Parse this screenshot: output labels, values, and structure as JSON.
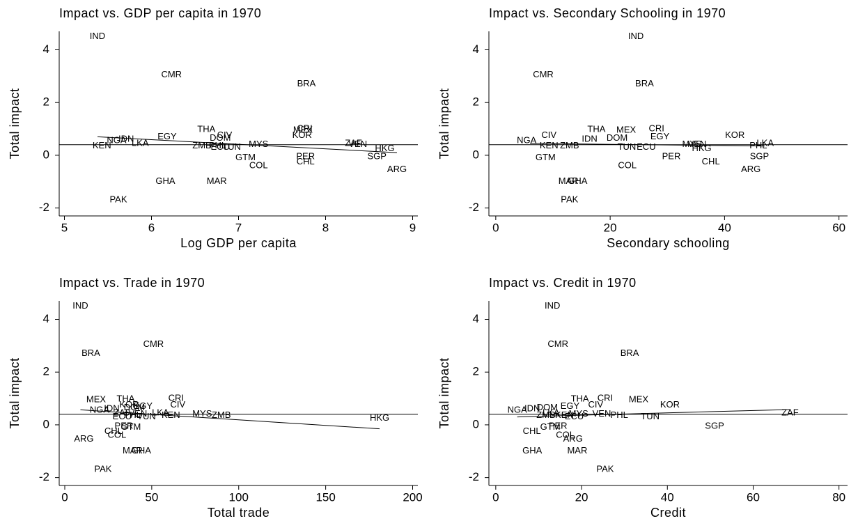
{
  "chart_data": [
    {
      "type": "scatter",
      "title": "Impact vs. GDP per capita in 1970",
      "x_label": "Log GDP per capita",
      "y_label": "Total impact",
      "labels": [
        "IND",
        "CMR",
        "BRA",
        "THA",
        "MEX",
        "CRI",
        "EGY",
        "KOR",
        "CIV",
        "NGA",
        "IDN",
        "DOM",
        "KEN",
        "ZMB",
        "LKA",
        "TUN",
        "ECU",
        "PHL",
        "MYS",
        "VEN",
        "ZAF",
        "HKG",
        "SGP",
        "PER",
        "GTM",
        "CHL",
        "COL",
        "ARG",
        "MAR",
        "GHA",
        "PAK"
      ],
      "x": [
        5.38,
        6.23,
        7.78,
        6.63,
        7.74,
        7.76,
        6.18,
        7.73,
        6.84,
        5.6,
        5.71,
        6.79,
        5.43,
        6.58,
        5.87,
        6.92,
        6.79,
        6.76,
        7.23,
        8.37,
        8.32,
        8.68,
        8.59,
        7.77,
        7.08,
        7.77,
        7.23,
        8.82,
        6.75,
        6.16,
        5.62
      ],
      "y": [
        4.5,
        3.05,
        2.7,
        0.98,
        0.95,
        1.0,
        0.7,
        0.75,
        0.75,
        0.55,
        0.6,
        0.65,
        0.35,
        0.35,
        0.45,
        0.3,
        0.3,
        0.35,
        0.4,
        0.4,
        0.45,
        0.25,
        -0.05,
        -0.05,
        -0.1,
        -0.25,
        -0.4,
        -0.55,
        -1.0,
        -1.0,
        -1.7
      ],
      "fit_line": {
        "x": [
          5.38,
          8.82
        ],
        "y": [
          0.7,
          0.1
        ]
      },
      "reference_line": 0.4,
      "xlim": [
        4.94,
        9.06
      ],
      "ylim": [
        -2.3,
        4.7
      ],
      "xticks": [
        5,
        6,
        7,
        8,
        9
      ],
      "yticks": [
        -2,
        0,
        2,
        4
      ]
    },
    {
      "type": "scatter",
      "title": "Impact vs. Secondary Schooling in 1970",
      "x_label": "Secondary schooling",
      "y_label": "Total impact",
      "labels": [
        "IND",
        "CMR",
        "BRA",
        "THA",
        "MEX",
        "CRI",
        "EGY",
        "KOR",
        "CIV",
        "NGA",
        "IDN",
        "DOM",
        "KEN",
        "ZMB",
        "LKA",
        "TUN",
        "ECU",
        "PHL",
        "MYS",
        "VEN",
        "HKG",
        "SGP",
        "PER",
        "GTM",
        "CHL",
        "COL",
        "ARG",
        "MAR",
        "GHA",
        "PAK"
      ],
      "x": [
        24.5,
        8.3,
        26,
        17.6,
        22.8,
        28.1,
        28.7,
        41.8,
        9.3,
        5.4,
        16.4,
        21.2,
        9.3,
        12.9,
        47.1,
        22.9,
        26.3,
        45.9,
        34.3,
        35.2,
        36,
        46.1,
        30.7,
        8.7,
        37.6,
        23,
        44.6,
        12.7,
        14.3,
        12.9
      ],
      "y": [
        4.5,
        3.05,
        2.7,
        0.98,
        0.95,
        1.0,
        0.7,
        0.75,
        0.75,
        0.55,
        0.6,
        0.65,
        0.35,
        0.35,
        0.45,
        0.3,
        0.3,
        0.35,
        0.4,
        0.4,
        0.25,
        -0.05,
        -0.05,
        -0.1,
        -0.25,
        -0.4,
        -0.55,
        -1.0,
        -1.0,
        -1.7
      ],
      "fit_line": {
        "x": [
          6,
          47
        ],
        "y": [
          0.45,
          0.35
        ]
      },
      "reference_line": 0.4,
      "xlim": [
        -1.2,
        61.5
      ],
      "ylim": [
        -2.3,
        4.7
      ],
      "xticks": [
        0,
        20,
        40,
        60
      ],
      "yticks": [
        -2,
        0,
        2,
        4
      ]
    },
    {
      "type": "scatter",
      "title": "Impact vs. Trade in 1970",
      "x_label": "Total trade",
      "y_label": "Total impact",
      "labels": [
        "IND",
        "CMR",
        "BRA",
        "THA",
        "MEX",
        "CRI",
        "EGY",
        "KOR",
        "CIV",
        "NGA",
        "IDN",
        "DOM",
        "KEN",
        "ZMB",
        "LKA",
        "TUN",
        "ECU",
        "PHL",
        "MYS",
        "VEN",
        "ZAF",
        "HKG",
        "PER",
        "GTM",
        "CHL",
        "COL",
        "ARG",
        "MAR",
        "GHA",
        "PAK"
      ],
      "x": [
        9,
        51,
        15,
        35,
        18,
        64,
        45,
        37,
        65,
        20,
        27,
        40,
        61,
        90,
        55,
        47,
        33,
        39,
        79,
        42,
        33,
        181,
        34,
        38,
        28,
        30,
        11,
        39,
        44,
        22
      ],
      "y": [
        4.5,
        3.05,
        2.7,
        0.98,
        0.95,
        1.0,
        0.7,
        0.75,
        0.75,
        0.55,
        0.6,
        0.65,
        0.35,
        0.35,
        0.45,
        0.3,
        0.3,
        0.35,
        0.4,
        0.4,
        0.45,
        0.25,
        -0.05,
        -0.1,
        -0.25,
        -0.4,
        -0.55,
        -1.0,
        -1.0,
        -1.7
      ],
      "fit_line": {
        "x": [
          9,
          181
        ],
        "y": [
          0.57,
          -0.15
        ]
      },
      "reference_line": 0.4,
      "xlim": [
        -3.2,
        203
      ],
      "ylim": [
        -2.3,
        4.7
      ],
      "xticks": [
        0,
        50,
        100,
        150,
        200
      ],
      "yticks": [
        -2,
        0,
        2,
        4
      ]
    },
    {
      "type": "scatter",
      "title": "Impact vs. Credit in 1970",
      "x_label": "Credit",
      "y_label": "Total impact",
      "labels": [
        "IND",
        "CMR",
        "BRA",
        "THA",
        "MEX",
        "CRI",
        "EGY",
        "KOR",
        "CIV",
        "NGA",
        "IDN",
        "DOM",
        "KEN",
        "ZMB",
        "LKA",
        "TUN",
        "ECU",
        "PHL",
        "MYS",
        "VEN",
        "ZAF",
        "SGP",
        "PER",
        "GTM",
        "CHL",
        "COL",
        "ARG",
        "MAR",
        "GHA",
        "PAK"
      ],
      "x": [
        13.2,
        14.5,
        31.2,
        19.6,
        33.3,
        25.5,
        17.3,
        40.6,
        23.3,
        5,
        8.5,
        12,
        16,
        11.7,
        12.9,
        36,
        18.3,
        28.8,
        19.3,
        24.7,
        68.6,
        51,
        14.5,
        12.7,
        8.4,
        16.2,
        18,
        19,
        8.5,
        25.5
      ],
      "y": [
        4.5,
        3.05,
        2.7,
        0.98,
        0.95,
        1.0,
        0.7,
        0.75,
        0.75,
        0.55,
        0.6,
        0.65,
        0.35,
        0.35,
        0.45,
        0.3,
        0.3,
        0.35,
        0.4,
        0.4,
        0.45,
        -0.05,
        -0.05,
        -0.1,
        -0.25,
        -0.4,
        -0.55,
        -1.0,
        -1.0,
        -1.7
      ],
      "fit_line": {
        "x": [
          5,
          68.6
        ],
        "y": [
          0.3,
          0.58
        ]
      },
      "reference_line": 0.4,
      "xlim": [
        -1.6,
        82
      ],
      "ylim": [
        -2.3,
        4.7
      ],
      "xticks": [
        0,
        20,
        40,
        60,
        80
      ],
      "yticks": [
        -2,
        0,
        2,
        4
      ]
    }
  ]
}
